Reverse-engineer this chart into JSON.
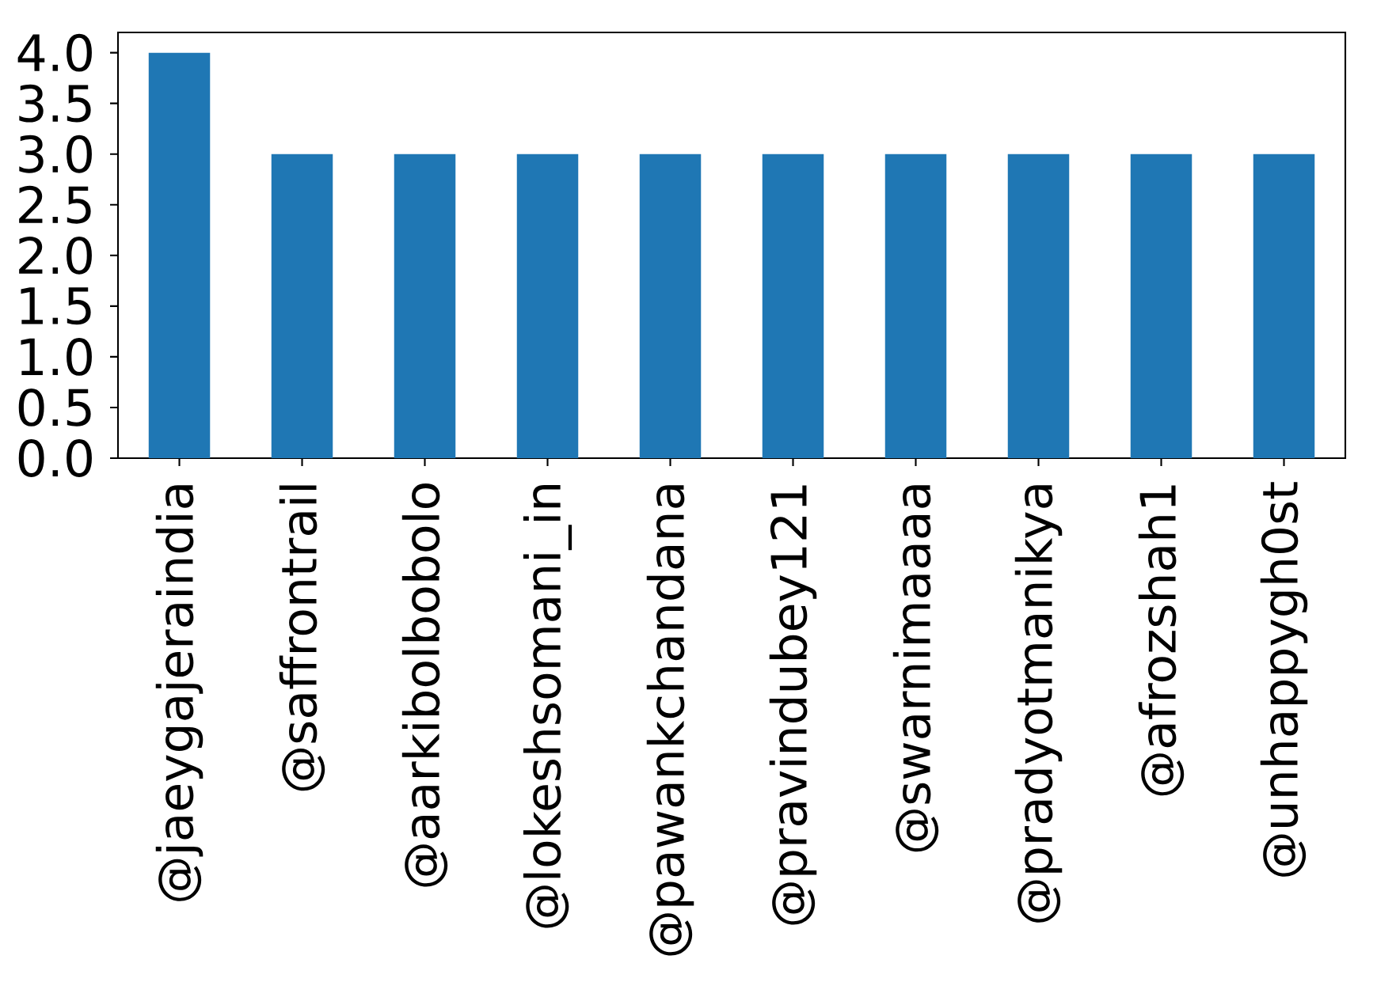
{
  "chart_data": {
    "type": "bar",
    "categories": [
      "@jaeygajeraindia",
      "@saffrontrail",
      "@aarkibolbobolo",
      "@lokeshsomani_in",
      "@pawankchandana",
      "@pravindubey121",
      "@swarnimaaaa",
      "@pradyotmanikya",
      "@afrozshah1",
      "@unhappygh0st"
    ],
    "values": [
      4,
      3,
      3,
      3,
      3,
      3,
      3,
      3,
      3,
      3
    ],
    "color": "#1f77b4",
    "ylim": [
      0,
      4.2
    ],
    "yticks": [
      {
        "value": 0,
        "label": "0.0"
      },
      {
        "value": 0.5,
        "label": "0.5"
      },
      {
        "value": 1,
        "label": "1.0"
      },
      {
        "value": 1.5,
        "label": "1.5"
      },
      {
        "value": 2,
        "label": "2.0"
      },
      {
        "value": 2.5,
        "label": "2.5"
      },
      {
        "value": 3,
        "label": "3.0"
      },
      {
        "value": 3.5,
        "label": "3.5"
      },
      {
        "value": 4,
        "label": "4.0"
      }
    ],
    "grid": false
  }
}
